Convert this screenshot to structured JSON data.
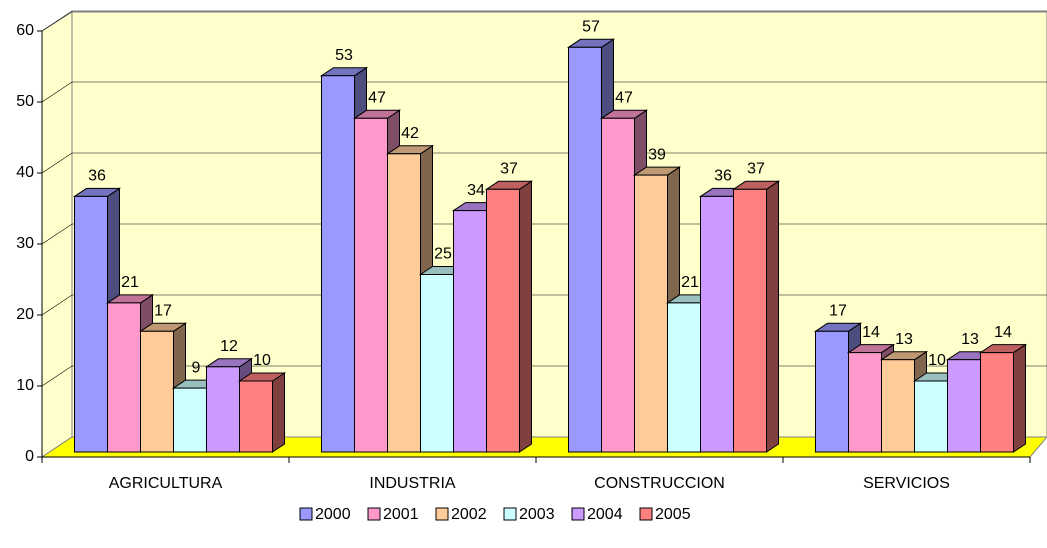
{
  "chart_data": {
    "type": "bar3d",
    "categories": [
      "AGRICULTURA",
      "INDUSTRIA",
      "CONSTRUCCION",
      "SERVICIOS"
    ],
    "series": [
      {
        "name": "2000",
        "color": "#9999ff",
        "values": [
          36,
          53,
          57,
          17
        ]
      },
      {
        "name": "2001",
        "color": "#ff99cc",
        "values": [
          21,
          47,
          47,
          14
        ]
      },
      {
        "name": "2002",
        "color": "#ffcc99",
        "values": [
          17,
          42,
          39,
          13
        ]
      },
      {
        "name": "2003",
        "color": "#ccffff",
        "values": [
          9,
          25,
          21,
          10
        ]
      },
      {
        "name": "2004",
        "color": "#cc99ff",
        "values": [
          12,
          34,
          36,
          13
        ]
      },
      {
        "name": "2005",
        "color": "#ff8080",
        "values": [
          10,
          37,
          37,
          14
        ]
      }
    ],
    "ylim": [
      0,
      60
    ],
    "yticks": [
      0,
      10,
      20,
      30,
      40,
      50,
      60
    ],
    "grid": true,
    "legend": "bottom"
  }
}
